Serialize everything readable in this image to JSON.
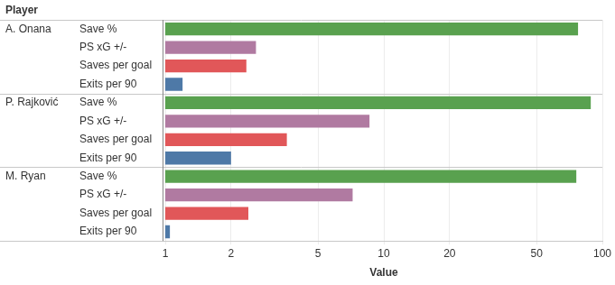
{
  "chart_data": {
    "type": "bar",
    "orientation": "horizontal",
    "log": "x",
    "grid": true,
    "y_label": "Player",
    "x_label": "Value",
    "categories": [
      "A. Onana",
      "P. Rajković",
      "M. Ryan"
    ],
    "series": [
      {
        "name": "Save %",
        "color": "#59a14f",
        "values": [
          77.4,
          88.5,
          76.0
        ]
      },
      {
        "name": "PS xG +/-",
        "color": "#b07aa1",
        "values": [
          2.6,
          8.6,
          7.2
        ]
      },
      {
        "name": "Saves per goal",
        "color": "#e15759",
        "values": [
          2.35,
          3.6,
          2.4
        ]
      },
      {
        "name": "Exits per 90",
        "color": "#4e79a7",
        "values": [
          1.2,
          2.0,
          1.05
        ]
      }
    ],
    "xlim": [
      1,
      100
    ],
    "xticks": [
      1,
      2,
      5,
      10,
      20,
      50,
      100
    ]
  }
}
